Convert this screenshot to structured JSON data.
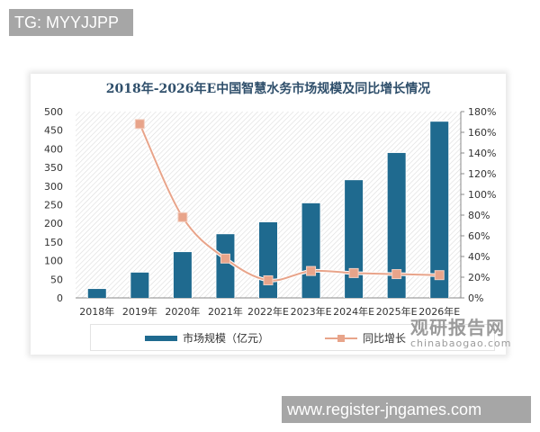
{
  "watermarks": {
    "top": "TG: MYYJJPP",
    "bottom": "www.register-jngames.com"
  },
  "logo": {
    "cn": "观研报告网",
    "en": "chinabaogao.com"
  },
  "colors": {
    "bar": "#1f6a8f",
    "line": "#e8a48a",
    "title": "#2f4f6b"
  },
  "chart_data": {
    "type": "bar",
    "title": "2018年-2026年E中国智慧水务市场规模及同比增长情况",
    "categories": [
      "2018年",
      "2019年",
      "2020年",
      "2021年",
      "2022年E",
      "2023年E",
      "2024年E",
      "2025年E",
      "2026年E"
    ],
    "series": [
      {
        "name": "市场规模（亿元）",
        "type": "bar",
        "axis": "left",
        "values": [
          24,
          68,
          123,
          171,
          203,
          254,
          316,
          389,
          473
        ]
      },
      {
        "name": "同比增长",
        "type": "line",
        "axis": "right",
        "values": [
          null,
          168,
          78,
          38,
          17,
          26,
          24,
          23,
          22
        ]
      }
    ],
    "ylim": [
      0,
      500
    ],
    "yticks": [
      0,
      50,
      100,
      150,
      200,
      250,
      300,
      350,
      400,
      450,
      500
    ],
    "y2lim": [
      0,
      180
    ],
    "y2ticks": [
      "0%",
      "20%",
      "40%",
      "60%",
      "80%",
      "100%",
      "120%",
      "140%",
      "160%",
      "180%"
    ],
    "legend_position": "bottom",
    "grid": false,
    "xlabel": "",
    "ylabel": "",
    "y2label": ""
  }
}
